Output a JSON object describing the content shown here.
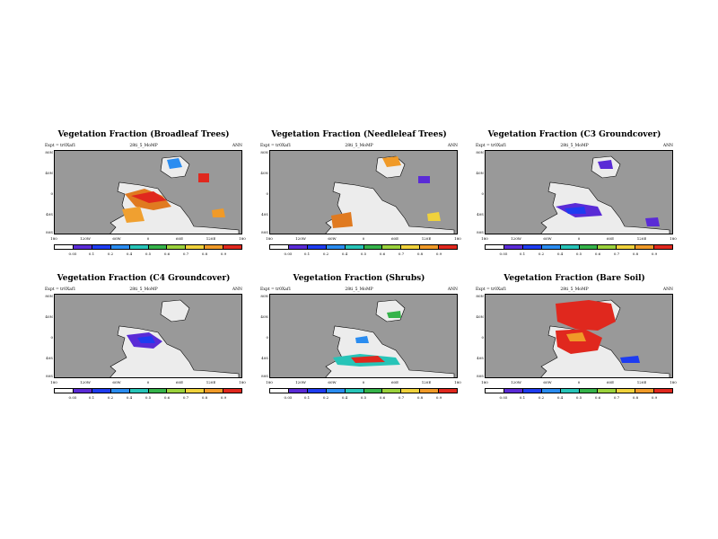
{
  "colors": {
    "ocean": "#999999",
    "land": "#ececec",
    "coast": "#000000",
    "scale": [
      "#ffffff",
      "#5a2bd6",
      "#1e3cf0",
      "#2a8cf0",
      "#27c4b8",
      "#35b34a",
      "#9bd23c",
      "#f0d23c",
      "#f09a28",
      "#e0281e"
    ]
  },
  "header": {
    "left": "Expt = tr0Xaf1",
    "center": "28ti_5_MoMP",
    "right": "ANN"
  },
  "lat_labels": [
    "80N",
    "40N",
    "0",
    "40S",
    "80S"
  ],
  "lon_labels": [
    "180",
    "120W",
    "60W",
    "0",
    "60E",
    "120E",
    "180"
  ],
  "colorbar_labels": [
    "0.05",
    "0.1",
    "0.2",
    "0.4",
    "0.5",
    "0.6",
    "0.7",
    "0.8",
    "0.9"
  ],
  "panels": [
    {
      "title": "Vegetation Fraction (Broadleaf Trees)"
    },
    {
      "title": "Vegetation Fraction (Needleleaf Trees)"
    },
    {
      "title": "Vegetation Fraction (C3 Groundcover)"
    },
    {
      "title": "Vegetation Fraction (C4 Groundcover)"
    },
    {
      "title": "Vegetation Fraction (Shrubs)"
    },
    {
      "title": "Vegetation Fraction (Bare Soil)"
    }
  ]
}
